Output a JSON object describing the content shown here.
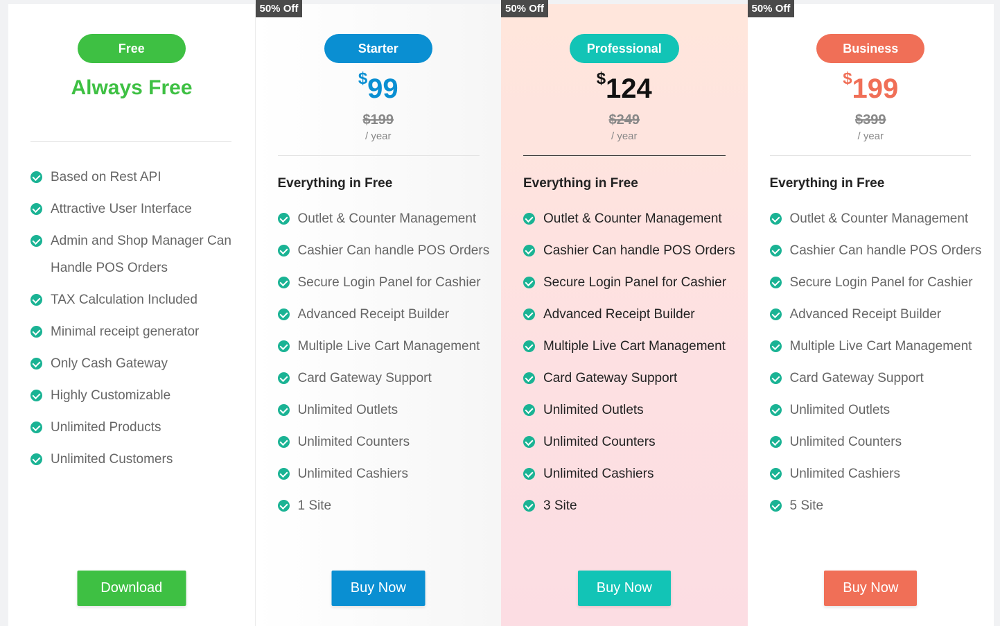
{
  "colors": {
    "green": "#3ec043",
    "blue": "#0a8fd2",
    "teal": "#12c4b6",
    "coral": "#f06f57",
    "check": "#1ab394"
  },
  "free": {
    "pill": "Free",
    "tagline": "Always Free",
    "features": [
      "Based on Rest API",
      "Attractive User Interface",
      "Admin and Shop Manager Can Handle POS Orders",
      "TAX Calculation Included",
      "Minimal receipt generator",
      "Only Cash Gateway",
      "Highly Customizable",
      "Unlimited Products",
      "Unlimited Customers"
    ],
    "cta": "Download"
  },
  "starter": {
    "badge": "50% Off",
    "pill": "Starter",
    "currency": "$",
    "price": "99",
    "old_price": "$199",
    "period": "/ year",
    "heading": "Everything in Free",
    "features": [
      "Outlet & Counter Management",
      "Cashier Can handle POS Orders",
      "Secure Login Panel for Cashier",
      "Advanced Receipt Builder",
      "Multiple Live Cart Management",
      "Card Gateway Support",
      "Unlimited Outlets",
      "Unlimited Counters",
      "Unlimited Cashiers",
      "1 Site"
    ],
    "cta": "Buy Now"
  },
  "professional": {
    "badge": "50% Off",
    "pill": "Professional",
    "currency": "$",
    "price": "124",
    "old_price": "$249",
    "period": "/ year",
    "heading": "Everything in Free",
    "features": [
      "Outlet & Counter Management",
      "Cashier Can handle POS Orders",
      "Secure Login Panel for Cashier",
      "Advanced Receipt Builder",
      "Multiple Live Cart Management",
      "Card Gateway Support",
      "Unlimited Outlets",
      "Unlimited Counters",
      "Unlimited Cashiers",
      "3 Site"
    ],
    "cta": "Buy Now"
  },
  "business": {
    "badge": "50% Off",
    "pill": "Business",
    "currency": "$",
    "price": "199",
    "old_price": "$399",
    "period": "/ year",
    "heading": "Everything in Free",
    "features": [
      "Outlet & Counter Management",
      "Cashier Can handle POS Orders",
      "Secure Login Panel for Cashier",
      "Advanced Receipt Builder",
      "Multiple Live Cart Management",
      "Card Gateway Support",
      "Unlimited Outlets",
      "Unlimited Counters",
      "Unlimited Cashiers",
      "5 Site"
    ],
    "cta": "Buy Now"
  }
}
